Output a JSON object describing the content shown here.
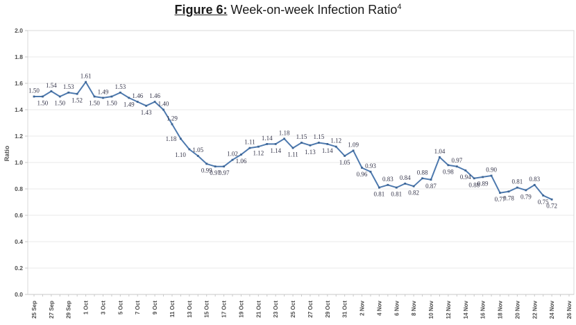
{
  "title": {
    "prefix": "Figure 6:",
    "main": "Week-on-week Infection Ratio",
    "superscript": "4"
  },
  "chart_data": {
    "type": "line",
    "title": "Figure 6: Week-on-week Infection Ratio4",
    "xlabel": "",
    "ylabel": "Ratio",
    "ylim": [
      0.0,
      2.0
    ],
    "ytick_step": 0.2,
    "grid": "horizontal",
    "legend_position": "none",
    "line_color": "#4d79ae",
    "marker_color": "#3d6595",
    "data_label_color": "#35354a",
    "axis_text_color": "#4d4d4d",
    "gridline_color": "#e9e9e9",
    "axis_line_color": "#c9c9c9",
    "plot_border_color": "#d9d9d9",
    "y_tick_labels": [
      "2.0",
      "1.8",
      "1.6",
      "1.4",
      "1.2",
      "1.0",
      "0.8",
      "0.6",
      "0.4",
      "0.2",
      "0.0"
    ],
    "x_tick_labels": [
      "25 Sep",
      "27 Sep",
      "29 Sep",
      "1 Oct",
      "3 Oct",
      "5 Oct",
      "7 Oct",
      "9 Oct",
      "11 Oct",
      "13 Oct",
      "15 Oct",
      "17 Oct",
      "19 Oct",
      "21 Oct",
      "23 Oct",
      "25 Oct",
      "27 Oct",
      "29 Oct",
      "31 Oct",
      "2 Nov",
      "4 Nov",
      "6 Nov",
      "8 Nov",
      "10 Nov",
      "12 Nov",
      "14 Nov",
      "16 Nov",
      "18 Nov",
      "20 Nov",
      "22 Nov",
      "24 Nov",
      "26 Nov"
    ],
    "x_axis_note": "daily categories from 25 Sep to 26 Nov; data ends 24 Nov",
    "series": [
      {
        "name": "Week-on-week infection ratio",
        "points": [
          {
            "date": "25 Sep",
            "value": 1.5,
            "pos": "above"
          },
          {
            "date": "26 Sep",
            "value": 1.5,
            "pos": "below"
          },
          {
            "date": "27 Sep",
            "value": 1.54,
            "pos": "above"
          },
          {
            "date": "28 Sep",
            "value": 1.5,
            "pos": "below"
          },
          {
            "date": "29 Sep",
            "value": 1.53,
            "pos": "above"
          },
          {
            "date": "30 Sep",
            "value": 1.52,
            "pos": "below"
          },
          {
            "date": "1 Oct",
            "value": 1.61,
            "pos": "above"
          },
          {
            "date": "2 Oct",
            "value": 1.5,
            "pos": "below"
          },
          {
            "date": "3 Oct",
            "value": 1.49,
            "pos": "above"
          },
          {
            "date": "4 Oct",
            "value": 1.5,
            "pos": "below"
          },
          {
            "date": "5 Oct",
            "value": 1.53,
            "pos": "above"
          },
          {
            "date": "6 Oct",
            "value": 1.49,
            "pos": "below"
          },
          {
            "date": "7 Oct",
            "value": 1.46,
            "pos": "above"
          },
          {
            "date": "8 Oct",
            "value": 1.43,
            "pos": "below"
          },
          {
            "date": "9 Oct",
            "value": 1.46,
            "pos": "above"
          },
          {
            "date": "10 Oct",
            "value": 1.4,
            "pos": "above"
          },
          {
            "date": "11 Oct",
            "value": 1.29,
            "pos": "above"
          },
          {
            "date": "12 Oct",
            "value": 1.18,
            "pos": "left"
          },
          {
            "date": "13 Oct",
            "value": 1.1,
            "pos": "left-below"
          },
          {
            "date": "14 Oct",
            "value": 1.05,
            "pos": "above"
          },
          {
            "date": "15 Oct",
            "value": 0.99,
            "pos": "below"
          },
          {
            "date": "16 Oct",
            "value": 0.97,
            "pos": "below"
          },
          {
            "date": "17 Oct",
            "value": 0.97,
            "pos": "below"
          },
          {
            "date": "18 Oct",
            "value": 1.02,
            "pos": "above"
          },
          {
            "date": "19 Oct",
            "value": 1.06,
            "pos": "below"
          },
          {
            "date": "20 Oct",
            "value": 1.11,
            "pos": "above"
          },
          {
            "date": "21 Oct",
            "value": 1.12,
            "pos": "below"
          },
          {
            "date": "22 Oct",
            "value": 1.14,
            "pos": "above"
          },
          {
            "date": "23 Oct",
            "value": 1.14,
            "pos": "below"
          },
          {
            "date": "24 Oct",
            "value": 1.18,
            "pos": "above"
          },
          {
            "date": "25 Oct",
            "value": 1.11,
            "pos": "below"
          },
          {
            "date": "26 Oct",
            "value": 1.15,
            "pos": "above"
          },
          {
            "date": "27 Oct",
            "value": 1.13,
            "pos": "below"
          },
          {
            "date": "28 Oct",
            "value": 1.15,
            "pos": "above"
          },
          {
            "date": "29 Oct",
            "value": 1.14,
            "pos": "below"
          },
          {
            "date": "30 Oct",
            "value": 1.12,
            "pos": "above"
          },
          {
            "date": "31 Oct",
            "value": 1.05,
            "pos": "below"
          },
          {
            "date": "1 Nov",
            "value": 1.09,
            "pos": "above"
          },
          {
            "date": "2 Nov",
            "value": 0.96,
            "pos": "below"
          },
          {
            "date": "3 Nov",
            "value": 0.93,
            "pos": "above"
          },
          {
            "date": "4 Nov",
            "value": 0.81,
            "pos": "below"
          },
          {
            "date": "5 Nov",
            "value": 0.83,
            "pos": "above"
          },
          {
            "date": "6 Nov",
            "value": 0.81,
            "pos": "below"
          },
          {
            "date": "7 Nov",
            "value": 0.84,
            "pos": "above"
          },
          {
            "date": "8 Nov",
            "value": 0.82,
            "pos": "below"
          },
          {
            "date": "9 Nov",
            "value": 0.88,
            "pos": "above"
          },
          {
            "date": "10 Nov",
            "value": 0.87,
            "pos": "below"
          },
          {
            "date": "11 Nov",
            "value": 1.04,
            "pos": "above"
          },
          {
            "date": "12 Nov",
            "value": 0.98,
            "pos": "below"
          },
          {
            "date": "13 Nov",
            "value": 0.97,
            "pos": "above"
          },
          {
            "date": "14 Nov",
            "value": 0.94,
            "pos": "below"
          },
          {
            "date": "15 Nov",
            "value": 0.88,
            "pos": "below"
          },
          {
            "date": "16 Nov",
            "value": 0.89,
            "pos": "below"
          },
          {
            "date": "17 Nov",
            "value": 0.9,
            "pos": "above"
          },
          {
            "date": "18 Nov",
            "value": 0.77,
            "pos": "below"
          },
          {
            "date": "19 Nov",
            "value": 0.78,
            "pos": "below"
          },
          {
            "date": "20 Nov",
            "value": 0.81,
            "pos": "above"
          },
          {
            "date": "21 Nov",
            "value": 0.79,
            "pos": "below"
          },
          {
            "date": "22 Nov",
            "value": 0.83,
            "pos": "above"
          },
          {
            "date": "23 Nov",
            "value": 0.75,
            "pos": "below"
          },
          {
            "date": "24 Nov",
            "value": 0.72,
            "pos": "below"
          }
        ]
      }
    ]
  }
}
